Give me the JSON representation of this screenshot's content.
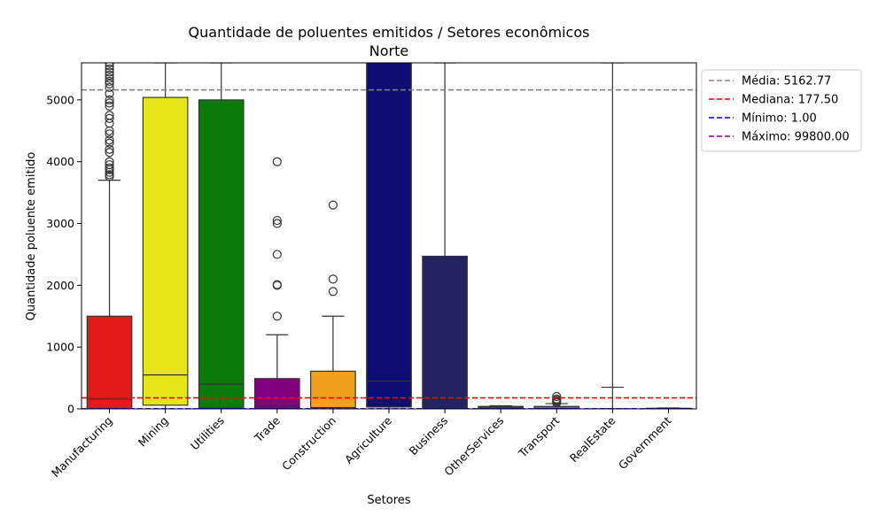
{
  "chart_data": {
    "type": "boxplot",
    "title": "Quantidade de poluentes emitidos / Setores econômicos",
    "subtitle": "Norte",
    "xlabel": "Setores",
    "ylabel": "Quantidade poluente emitido",
    "ylim": [
      0,
      5600
    ],
    "yticks": [
      0,
      1000,
      2000,
      3000,
      4000,
      5000
    ],
    "categories": [
      "Manufacturing",
      "Mining",
      "Utilities",
      "Trade",
      "Construction",
      "Agriculture",
      "Business",
      "OtherServices",
      "Transport",
      "RealEstate",
      "Government"
    ],
    "boxes": [
      {
        "category": "Manufacturing",
        "color": "#e31a1c",
        "q1": 0,
        "median": 160,
        "q3": 1500,
        "whisker_low": 0,
        "whisker_high": 3700,
        "outliers": [
          3760,
          3790,
          3830,
          3870,
          3900,
          3950,
          4000,
          4150,
          4200,
          4300,
          4350,
          4450,
          4500,
          4620,
          4700,
          4750,
          4900,
          4950,
          5000,
          5100,
          5200,
          5260,
          5300,
          5350,
          5400,
          5450,
          5500,
          5550,
          5600
        ]
      },
      {
        "category": "Mining",
        "color": "#e5e517",
        "q1": 60,
        "median": 550,
        "q3": 5040,
        "whisker_low": 0,
        "whisker_high": 5600,
        "outliers": []
      },
      {
        "category": "Utilities",
        "color": "#0a7a0a",
        "q1": 10,
        "median": 400,
        "q3": 5000,
        "whisker_low": 0,
        "whisker_high": 5600,
        "outliers": []
      },
      {
        "category": "Trade",
        "color": "#800080",
        "q1": 0,
        "median": 50,
        "q3": 490,
        "whisker_low": 0,
        "whisker_high": 1200,
        "outliers": [
          1500,
          2000,
          2010,
          2500,
          3000,
          3050,
          4000
        ]
      },
      {
        "category": "Construction",
        "color": "#f0a01a",
        "q1": 0,
        "median": 20,
        "q3": 610,
        "whisker_low": 0,
        "whisker_high": 1500,
        "outliers": [
          1900,
          2100,
          3300
        ]
      },
      {
        "category": "Agriculture",
        "color": "#0d0d72",
        "q1": 30,
        "median": 450,
        "q3": 5600,
        "whisker_low": 0,
        "whisker_high": 5600,
        "outliers": []
      },
      {
        "category": "Business",
        "color": "#232362",
        "q1": 0,
        "median": 0,
        "q3": 2470,
        "whisker_low": 0,
        "whisker_high": 5600,
        "outliers": []
      },
      {
        "category": "OtherServices",
        "color": "#2f4f4f",
        "q1": 0,
        "median": 10,
        "q3": 40,
        "whisker_low": 0,
        "whisker_high": 50,
        "outliers": []
      },
      {
        "category": "Transport",
        "color": "#777777",
        "q1": 0,
        "median": 10,
        "q3": 40,
        "whisker_low": 0,
        "whisker_high": 85,
        "outliers": [
          100,
          120,
          140,
          160,
          200
        ]
      },
      {
        "category": "RealEstate",
        "color": "#444444",
        "q1": 0,
        "median": 0,
        "q3": 0,
        "whisker_low": 0,
        "whisker_high": 5600,
        "extra_cap": 350,
        "outliers": []
      },
      {
        "category": "Government",
        "color": "#444444",
        "q1": 0,
        "median": 5,
        "q3": 10,
        "whisker_low": 0,
        "whisker_high": 15,
        "outliers": []
      }
    ],
    "reference_lines": [
      {
        "label": "Média: 5162.77",
        "value": 5162.77,
        "color": "#808080"
      },
      {
        "label": "Mediana: 177.50",
        "value": 177.5,
        "color": "#ff0000"
      },
      {
        "label": "Mínimo: 1.00",
        "value": 1.0,
        "color": "#0000ff"
      },
      {
        "label": "Máximo: 99800.00",
        "value": 99800.0,
        "color": "#800080"
      }
    ],
    "legend_position": "outside-right-top"
  }
}
